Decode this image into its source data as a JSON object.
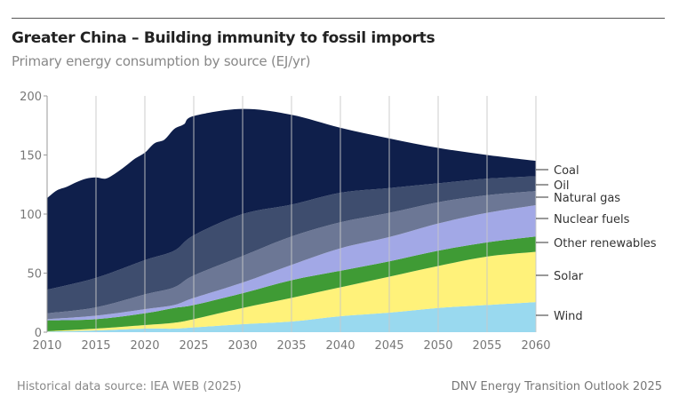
{
  "header": {
    "title": "Greater China – Building immunity to fossil imports",
    "subtitle": "Primary energy consumption by source (EJ/yr)"
  },
  "footer": {
    "source": "Historical data source: IEA WEB (2025)",
    "publisher": "DNV Energy Transition Outlook 2025"
  },
  "chart_data": {
    "type": "area",
    "stacked": true,
    "title": "Greater China – Building immunity to fossil imports",
    "subtitle": "Primary energy consumption by source (EJ/yr)",
    "xlabel": "",
    "ylabel": "EJ/yr",
    "xlim": [
      2010,
      2060
    ],
    "ylim": [
      0,
      200
    ],
    "x_ticks": [
      2010,
      2015,
      2020,
      2025,
      2030,
      2035,
      2040,
      2045,
      2050,
      2055,
      2060
    ],
    "y_ticks": [
      0,
      50,
      100,
      150,
      200
    ],
    "grid": "vertical",
    "legend_position": "right",
    "x": [
      2010,
      2015,
      2020,
      2023,
      2025,
      2030,
      2035,
      2040,
      2045,
      2050,
      2055,
      2060
    ],
    "series": [
      {
        "name": "Wind",
        "color": "#99d9ef",
        "values": [
          0.5,
          1.5,
          3,
          3,
          4,
          6.8,
          9,
          13.5,
          16.5,
          20.5,
          23,
          25.5
        ]
      },
      {
        "name": "Solar",
        "color": "#fff27a",
        "values": [
          0.3,
          1.5,
          3,
          5,
          7,
          13.7,
          20,
          24.5,
          30.5,
          35.5,
          41,
          42.5
        ]
      },
      {
        "name": "Other renewables",
        "color": "#3f9b35",
        "values": [
          9.2,
          8,
          10,
          12.5,
          12,
          12.5,
          15,
          14,
          13,
          13,
          12,
          13
        ]
      },
      {
        "name": "Nuclear fuels",
        "color": "#a2a8e6",
        "values": [
          1,
          3,
          3.5,
          2.5,
          6,
          9,
          13,
          19,
          20.5,
          23,
          25,
          26.5
        ]
      },
      {
        "name": "Natural gas",
        "color": "#6c7795",
        "values": [
          5,
          7,
          12.5,
          15,
          19,
          22.5,
          24,
          22,
          20.5,
          18,
          15,
          12
        ]
      },
      {
        "name": "Oil",
        "color": "#3e4d6e",
        "values": [
          20,
          25,
          29,
          31,
          34,
          35.5,
          27,
          25,
          21,
          16,
          14,
          12.5
        ]
      },
      {
        "name": "Coal",
        "color": "#0f1f4b",
        "values": [
          77.5,
          85,
          91,
          103,
          101,
          89,
          76,
          55,
          42,
          30,
          20,
          13
        ]
      }
    ],
    "total_detail": {
      "x": [
        2010,
        2011,
        2012,
        2013,
        2014,
        2015,
        2016,
        2017,
        2018,
        2019,
        2020,
        2021,
        2022,
        2023,
        2024,
        2025
      ],
      "values": [
        113.5,
        120,
        123,
        127,
        130,
        131,
        130,
        134.5,
        140.5,
        147,
        152,
        160,
        163,
        172,
        176,
        183
      ]
    }
  }
}
